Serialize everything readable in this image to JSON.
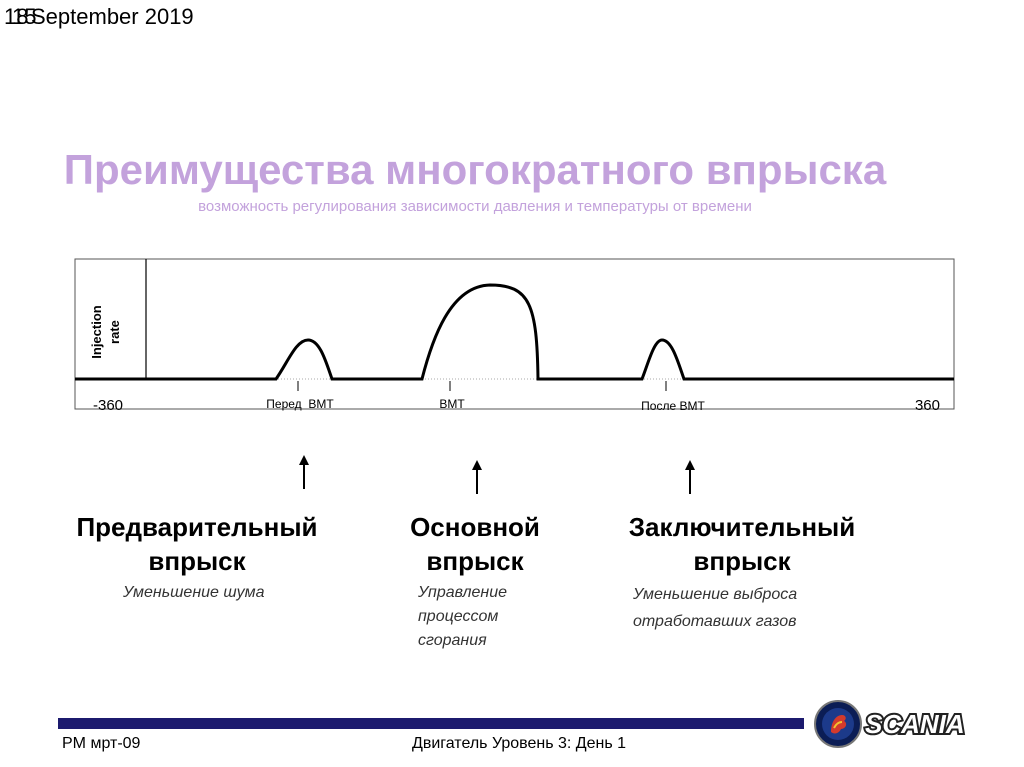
{
  "header": {
    "slide_number_a": "18",
    "slide_number_b": "15",
    "date": "September 2019"
  },
  "title": "Преимущества многократного впрыска",
  "subtitle": "возможность регулирования зависимости давления и температуры от времени",
  "diagram": {
    "y_axis_label_line1": "Injection",
    "y_axis_label_line2": "rate",
    "x_start": "-360",
    "x_end": "360",
    "marks": [
      "Перед  BMT",
      "BMT",
      "После BMT"
    ]
  },
  "injections": [
    {
      "title_line1": "Предварительный",
      "title_line2": "впрыск",
      "description": [
        "Уменьшение шума"
      ]
    },
    {
      "title_line1": "Основной",
      "title_line2": "впрыск",
      "description": [
        "Управление",
        "процессом",
        "сгорания"
      ]
    },
    {
      "title_line1": "Заключительный",
      "title_line2": "впрыск",
      "description": [
        "Уменьшение выброса",
        "отработавших газов"
      ]
    }
  ],
  "footer": {
    "left": "PM мрт-09",
    "center": "Двигатель Уровень 3: День 1",
    "brand": "SCANIA"
  },
  "colors": {
    "title": "#c3a2dc",
    "footer_bar": "#1c1a6e"
  }
}
